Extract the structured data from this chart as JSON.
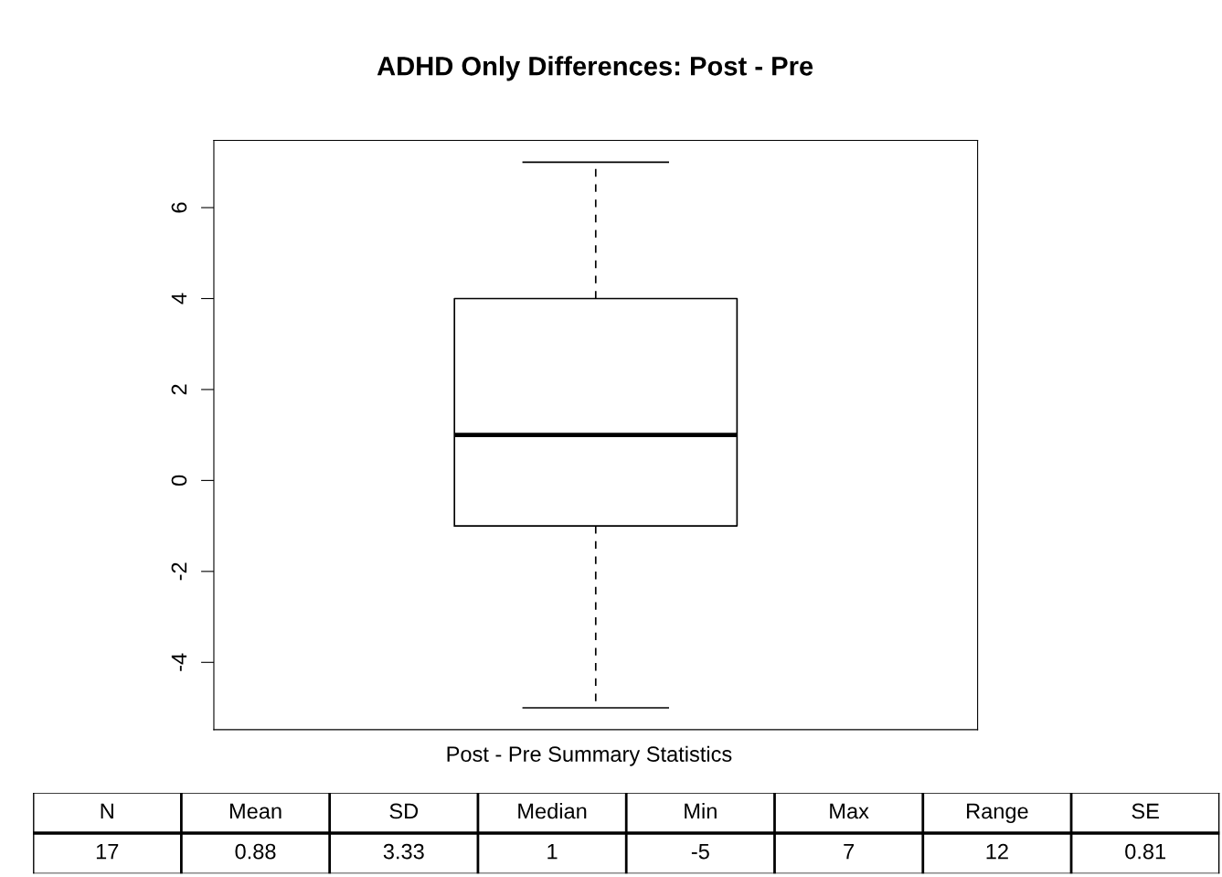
{
  "chart_data": [
    {
      "type": "box",
      "title": "ADHD Only Differences: Post - Pre",
      "categories": [
        null
      ],
      "boxes": [
        {
          "low": -5,
          "q1": -1,
          "median": 1,
          "q3": 4,
          "high": 7
        }
      ],
      "ylim": [
        -5.48,
        7.48
      ],
      "yticks": [
        -4,
        -2,
        0,
        2,
        4,
        6
      ],
      "tick_labels": "y",
      "grid": false
    },
    {
      "type": "other",
      "title": "Post - Pre Summary Statistics",
      "categories": [
        "N",
        "Mean",
        "SD",
        "Median",
        "Min",
        "Max",
        "Range",
        "SE"
      ],
      "values": [
        17,
        0.88,
        3.33,
        1,
        -5,
        7,
        12,
        0.81
      ],
      "data_labels": true
    }
  ]
}
